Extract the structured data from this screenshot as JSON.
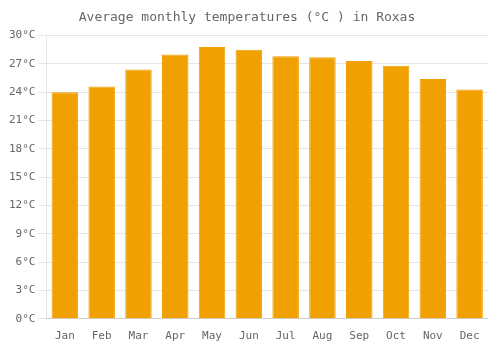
{
  "chart_data": {
    "type": "bar",
    "title": "Average monthly temperatures (°C ) in Roxas",
    "categories": [
      "Jan",
      "Feb",
      "Mar",
      "Apr",
      "May",
      "Jun",
      "Jul",
      "Aug",
      "Sep",
      "Oct",
      "Nov",
      "Dec"
    ],
    "values": [
      24.0,
      24.6,
      26.4,
      28.0,
      28.8,
      28.5,
      27.8,
      27.7,
      27.3,
      26.8,
      25.4,
      24.3
    ],
    "color": "#F0A000",
    "ylim": [
      0,
      30
    ],
    "yticks": [
      {
        "value": 0,
        "label": "0°C"
      },
      {
        "value": 3,
        "label": "3°C"
      },
      {
        "value": 6,
        "label": "6°C"
      },
      {
        "value": 9,
        "label": "9°C"
      },
      {
        "value": 12,
        "label": "12°C"
      },
      {
        "value": 15,
        "label": "15°C"
      },
      {
        "value": 18,
        "label": "18°C"
      },
      {
        "value": 21,
        "label": "21°C"
      },
      {
        "value": 24,
        "label": "24°C"
      },
      {
        "value": 27,
        "label": "27°C"
      },
      {
        "value": 30,
        "label": "30°C"
      }
    ],
    "grid": true
  }
}
